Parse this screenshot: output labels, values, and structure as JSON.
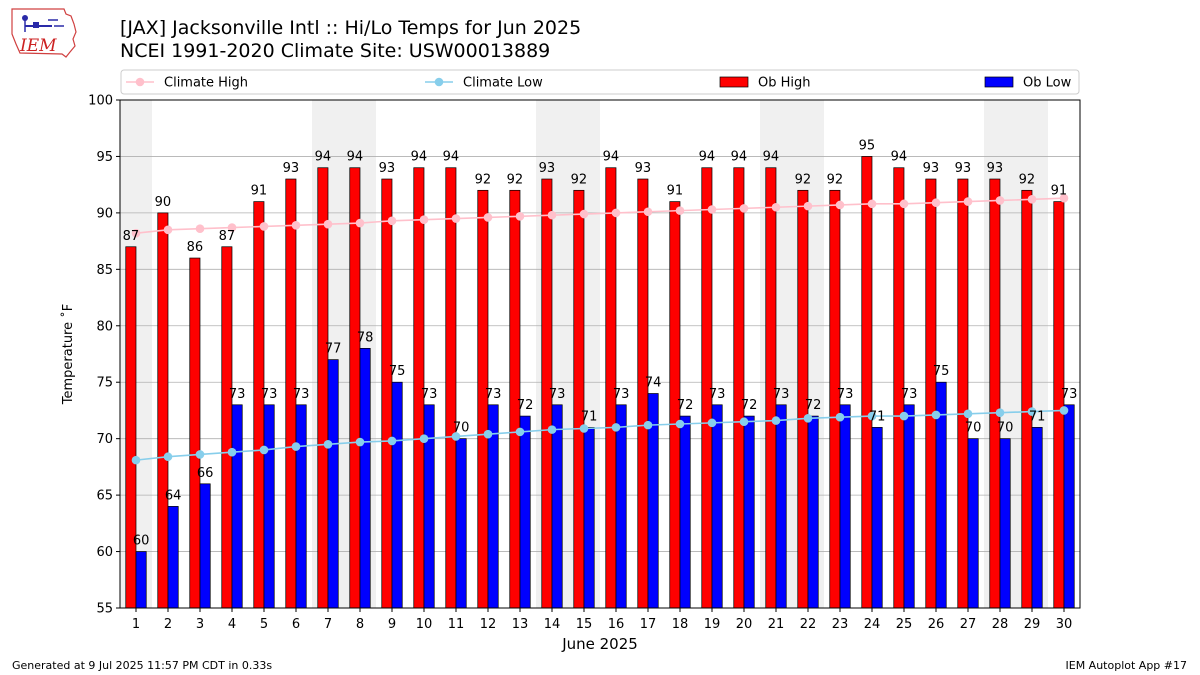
{
  "header": {
    "title_line1": "[JAX] Jacksonville Intl :: Hi/Lo Temps for Jun 2025",
    "title_line2": "NCEI 1991-2020 Climate Site: USW00013889"
  },
  "logo": {
    "text": "IEM"
  },
  "footer": {
    "generated": "Generated at 9 Jul 2025 11:57 PM CDT in 0.33s",
    "app": "IEM Autoplot App #17"
  },
  "colors": {
    "ob_high": "#ff0000",
    "ob_low": "#0000ff",
    "climate_high": "#ffc0cb",
    "climate_low": "#87ceeb",
    "weekend_band": "#f0f0f0",
    "grid": "#b0b0b0"
  },
  "chart_data": {
    "type": "bar",
    "xlabel": "June 2025",
    "ylabel": "Temperature ˚F",
    "ylim": [
      55,
      100
    ],
    "yticks": [
      55,
      60,
      65,
      70,
      75,
      80,
      85,
      90,
      95,
      100
    ],
    "grid": true,
    "legend_position": "top",
    "x": [
      1,
      2,
      3,
      4,
      5,
      6,
      7,
      8,
      9,
      10,
      11,
      12,
      13,
      14,
      15,
      16,
      17,
      18,
      19,
      20,
      21,
      22,
      23,
      24,
      25,
      26,
      27,
      28,
      29,
      30
    ],
    "weekend_days": [
      1,
      7,
      8,
      14,
      15,
      21,
      22,
      28,
      29
    ],
    "series": [
      {
        "name": "Climate High",
        "kind": "line",
        "values": [
          88.2,
          88.5,
          88.6,
          88.7,
          88.8,
          88.9,
          89.0,
          89.1,
          89.3,
          89.4,
          89.5,
          89.6,
          89.7,
          89.8,
          89.9,
          90.0,
          90.1,
          90.2,
          90.3,
          90.4,
          90.5,
          90.6,
          90.7,
          90.8,
          90.8,
          90.9,
          91.0,
          91.1,
          91.2,
          91.3
        ]
      },
      {
        "name": "Climate Low",
        "kind": "line",
        "values": [
          68.1,
          68.4,
          68.6,
          68.8,
          69.0,
          69.3,
          69.5,
          69.7,
          69.8,
          70.0,
          70.2,
          70.4,
          70.6,
          70.8,
          70.9,
          71.0,
          71.2,
          71.3,
          71.4,
          71.5,
          71.6,
          71.8,
          71.9,
          72.0,
          72.0,
          72.1,
          72.2,
          72.3,
          72.4,
          72.5
        ]
      },
      {
        "name": "Ob High",
        "kind": "bar",
        "values": [
          87,
          90,
          86,
          87,
          91,
          93,
          94,
          94,
          93,
          94,
          94,
          92,
          92,
          93,
          92,
          94,
          93,
          91,
          94,
          94,
          94,
          92,
          92,
          95,
          94,
          93,
          93,
          93,
          92,
          91
        ]
      },
      {
        "name": "Ob Low",
        "kind": "bar",
        "values": [
          60,
          64,
          66,
          73,
          73,
          73,
          77,
          78,
          75,
          73,
          70,
          73,
          72,
          73,
          71,
          73,
          74,
          72,
          73,
          72,
          73,
          72,
          73,
          71,
          73,
          75,
          70,
          70,
          71,
          73
        ]
      }
    ]
  }
}
